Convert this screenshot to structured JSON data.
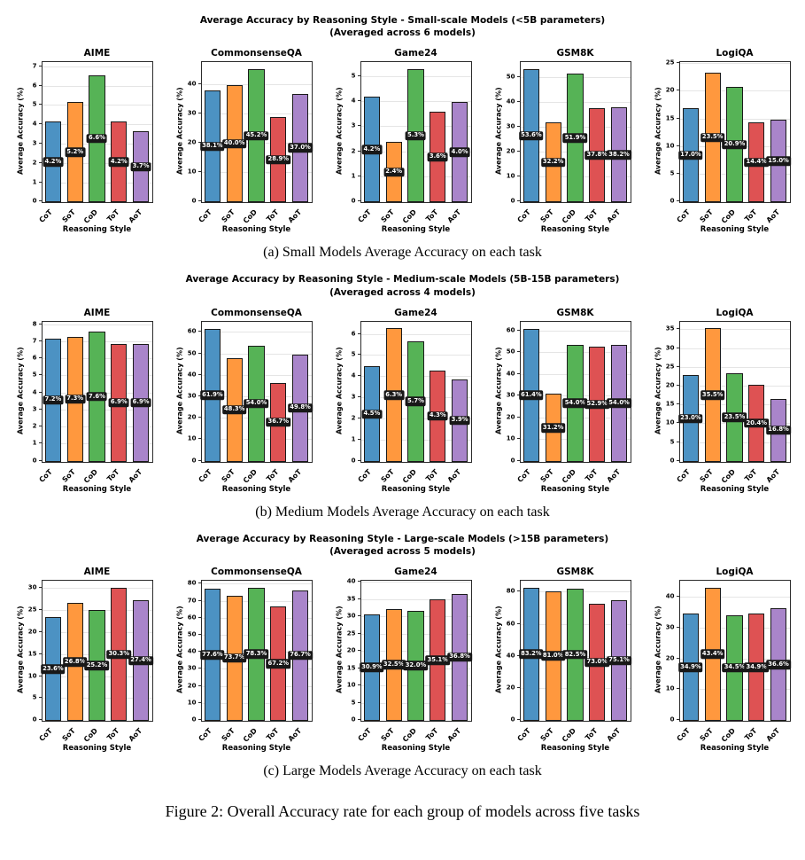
{
  "figure": {
    "caption": "Figure 2: Overall Accuracy rate for each group of models across five tasks"
  },
  "reasoning_styles": [
    "CoT",
    "SoT",
    "CoD",
    "ToT",
    "AoT"
  ],
  "colors": {
    "bars": [
      "#4C92C3",
      "#FF983E",
      "#56B356",
      "#DE5253",
      "#A985CA"
    ],
    "bar_edge": "#1a1a1a",
    "value_label_bg": "#181818",
    "value_label_text": "#ffffff",
    "grid": "#e5e5e5",
    "spine": "#2b2b2b"
  },
  "chart_data": [
    {
      "type": "bar",
      "scale_group": "small",
      "title": "Average Accuracy by Reasoning Style - Small-scale Models (<5B parameters)",
      "subtitle": "(Averaged across 6 models)",
      "caption": "(a) Small Models Average Accuracy on each task",
      "xlabel": "Reasoning Style",
      "ylabel": "Average Accuracy (%)",
      "categories": [
        "CoT",
        "SoT",
        "CoD",
        "ToT",
        "AoT"
      ],
      "legend": "none",
      "grid": "horizontal",
      "charts": [
        {
          "title": "AIME",
          "values": [
            4.2,
            5.2,
            6.6,
            4.2,
            3.7
          ],
          "ylim": [
            0,
            7.25
          ],
          "yticks": [
            0,
            1,
            2,
            3,
            4,
            5,
            6,
            7
          ]
        },
        {
          "title": "CommonsenseQA",
          "values": [
            38.1,
            40.0,
            45.2,
            28.9,
            37.0
          ],
          "ylim": [
            0,
            47.6
          ],
          "yticks": [
            0,
            10,
            20,
            30,
            40
          ]
        },
        {
          "title": "Game24",
          "values": [
            4.2,
            2.4,
            5.3,
            3.6,
            4.0
          ],
          "ylim": [
            0,
            5.57
          ],
          "yticks": [
            0,
            1,
            2,
            3,
            4,
            5
          ]
        },
        {
          "title": "GSM8K",
          "values": [
            53.6,
            32.2,
            51.9,
            37.8,
            38.2
          ],
          "ylim": [
            0,
            56.4
          ],
          "yticks": [
            0,
            10,
            20,
            30,
            40,
            50
          ]
        },
        {
          "title": "LogiQA",
          "values": [
            17.0,
            23.5,
            20.9,
            14.4,
            15.0
          ],
          "ylim": [
            0,
            25.3
          ],
          "yticks": [
            0,
            5,
            10,
            15,
            20,
            25
          ]
        }
      ]
    },
    {
      "type": "bar",
      "scale_group": "medium",
      "title": "Average Accuracy by Reasoning Style - Medium-scale Models (5B-15B parameters)",
      "subtitle": "(Averaged across 4 models)",
      "caption": "(b) Medium Models Average Accuracy on each task",
      "xlabel": "Reasoning Style",
      "ylabel": "Average Accuracy (%)",
      "categories": [
        "CoT",
        "SoT",
        "CoD",
        "ToT",
        "AoT"
      ],
      "legend": "none",
      "grid": "horizontal",
      "charts": [
        {
          "title": "AIME",
          "values": [
            7.2,
            7.3,
            7.6,
            6.9,
            6.9
          ],
          "ylim": [
            0,
            8.2
          ],
          "yticks": [
            0,
            1,
            2,
            3,
            4,
            5,
            6,
            7,
            8
          ]
        },
        {
          "title": "CommonsenseQA",
          "values": [
            61.9,
            48.3,
            54.0,
            36.7,
            49.8
          ],
          "ylim": [
            0,
            65.2
          ],
          "yticks": [
            0,
            10,
            20,
            30,
            40,
            50,
            60
          ]
        },
        {
          "title": "Game24",
          "values": [
            4.5,
            6.3,
            5.7,
            4.3,
            3.9
          ],
          "ylim": [
            0,
            6.62
          ],
          "yticks": [
            0,
            1,
            2,
            3,
            4,
            5,
            6
          ]
        },
        {
          "title": "GSM8K",
          "values": [
            61.4,
            31.2,
            54.0,
            52.9,
            54.0
          ],
          "ylim": [
            0,
            64.6
          ],
          "yticks": [
            0,
            10,
            20,
            30,
            40,
            50,
            60
          ]
        },
        {
          "title": "LogiQA",
          "values": [
            23.0,
            35.5,
            23.5,
            20.4,
            16.8
          ],
          "ylim": [
            0,
            37.3
          ],
          "yticks": [
            0,
            5,
            10,
            15,
            20,
            25,
            30,
            35
          ]
        }
      ]
    },
    {
      "type": "bar",
      "scale_group": "large",
      "title": "Average Accuracy by Reasoning Style - Large-scale Models (>15B parameters)",
      "subtitle": "(Averaged across 5 models)",
      "caption": "(c) Large Models Average Accuracy on each task",
      "xlabel": "Reasoning Style",
      "ylabel": "Average Accuracy (%)",
      "categories": [
        "CoT",
        "SoT",
        "CoD",
        "ToT",
        "AoT"
      ],
      "legend": "none",
      "grid": "horizontal",
      "charts": [
        {
          "title": "AIME",
          "values": [
            23.6,
            26.8,
            25.2,
            30.3,
            27.4
          ],
          "ylim": [
            0,
            31.9
          ],
          "yticks": [
            0,
            5,
            10,
            15,
            20,
            25,
            30
          ]
        },
        {
          "title": "CommonsenseQA",
          "values": [
            77.6,
            73.7,
            78.3,
            67.2,
            76.7
          ],
          "ylim": [
            0,
            82.3
          ],
          "yticks": [
            0,
            10,
            20,
            30,
            40,
            50,
            60,
            70,
            80
          ]
        },
        {
          "title": "Game24",
          "values": [
            30.9,
            32.5,
            32.0,
            35.1,
            36.8
          ],
          "ylim": [
            0,
            40.6
          ],
          "yticks": [
            0,
            5,
            10,
            15,
            20,
            25,
            30,
            35,
            40
          ]
        },
        {
          "title": "GSM8K",
          "values": [
            83.2,
            81.0,
            82.5,
            73.0,
            75.1
          ],
          "ylim": [
            0,
            87.4
          ],
          "yticks": [
            0,
            20,
            40,
            60,
            80
          ]
        },
        {
          "title": "LogiQA",
          "values": [
            34.9,
            43.4,
            34.5,
            34.9,
            36.6
          ],
          "ylim": [
            0,
            45.6
          ],
          "yticks": [
            0,
            10,
            20,
            30,
            40
          ]
        }
      ]
    }
  ]
}
